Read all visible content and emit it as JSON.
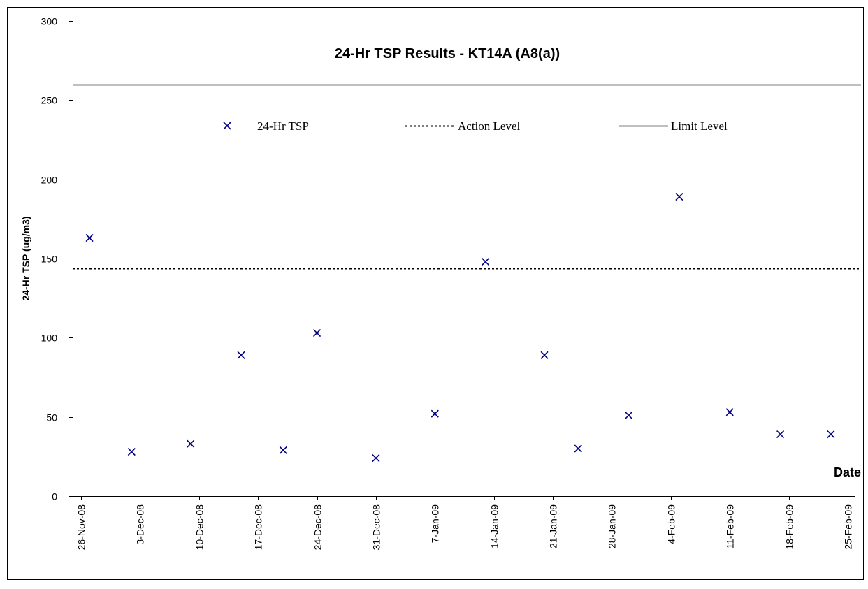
{
  "chart_data": {
    "type": "scatter",
    "title": "24-Hr TSP Results - KT14A (A8(a))",
    "xlabel": "Date",
    "ylabel": "24-Hr TSP (ug/m3)",
    "ylim": [
      0,
      300
    ],
    "y_ticks": [
      0,
      50,
      100,
      150,
      200,
      250,
      300
    ],
    "xlim": [
      "2008-11-26",
      "2009-02-25"
    ],
    "x_ticks": [
      {
        "date": "2008-11-26",
        "label": "26-Nov-08"
      },
      {
        "date": "2008-12-03",
        "label": "3-Dec-08"
      },
      {
        "date": "2008-12-10",
        "label": "10-Dec-08"
      },
      {
        "date": "2008-12-17",
        "label": "17-Dec-08"
      },
      {
        "date": "2008-12-24",
        "label": "24-Dec-08"
      },
      {
        "date": "2008-12-31",
        "label": "31-Dec-08"
      },
      {
        "date": "2009-01-07",
        "label": "7-Jan-09"
      },
      {
        "date": "2009-01-14",
        "label": "14-Jan-09"
      },
      {
        "date": "2009-01-21",
        "label": "21-Jan-09"
      },
      {
        "date": "2009-01-28",
        "label": "28-Jan-09"
      },
      {
        "date": "2009-02-04",
        "label": "4-Feb-09"
      },
      {
        "date": "2009-02-11",
        "label": "11-Feb-09"
      },
      {
        "date": "2009-02-18",
        "label": "18-Feb-09"
      },
      {
        "date": "2009-02-25",
        "label": "25-Feb-09"
      }
    ],
    "series": [
      {
        "name": "24-Hr TSP",
        "marker": "x",
        "color": "#000080",
        "points": [
          {
            "x": "2008-11-27",
            "y": 163
          },
          {
            "x": "2008-12-02",
            "y": 28
          },
          {
            "x": "2008-12-09",
            "y": 33
          },
          {
            "x": "2008-12-15",
            "y": 89
          },
          {
            "x": "2008-12-20",
            "y": 29
          },
          {
            "x": "2008-12-24",
            "y": 103
          },
          {
            "x": "2008-12-31",
            "y": 24
          },
          {
            "x": "2009-01-07",
            "y": 52
          },
          {
            "x": "2009-01-13",
            "y": 148
          },
          {
            "x": "2009-01-20",
            "y": 89
          },
          {
            "x": "2009-01-24",
            "y": 30
          },
          {
            "x": "2009-01-30",
            "y": 51
          },
          {
            "x": "2009-02-05",
            "y": 189
          },
          {
            "x": "2009-02-11",
            "y": 53
          },
          {
            "x": "2009-02-17",
            "y": 39
          },
          {
            "x": "2009-02-23",
            "y": 39
          }
        ]
      }
    ],
    "reference_lines": [
      {
        "name": "Action Level",
        "y": 144,
        "style": "dotted"
      },
      {
        "name": "Limit Level",
        "y": 260,
        "style": "solid"
      }
    ],
    "grid": false,
    "legend_position": "top"
  }
}
